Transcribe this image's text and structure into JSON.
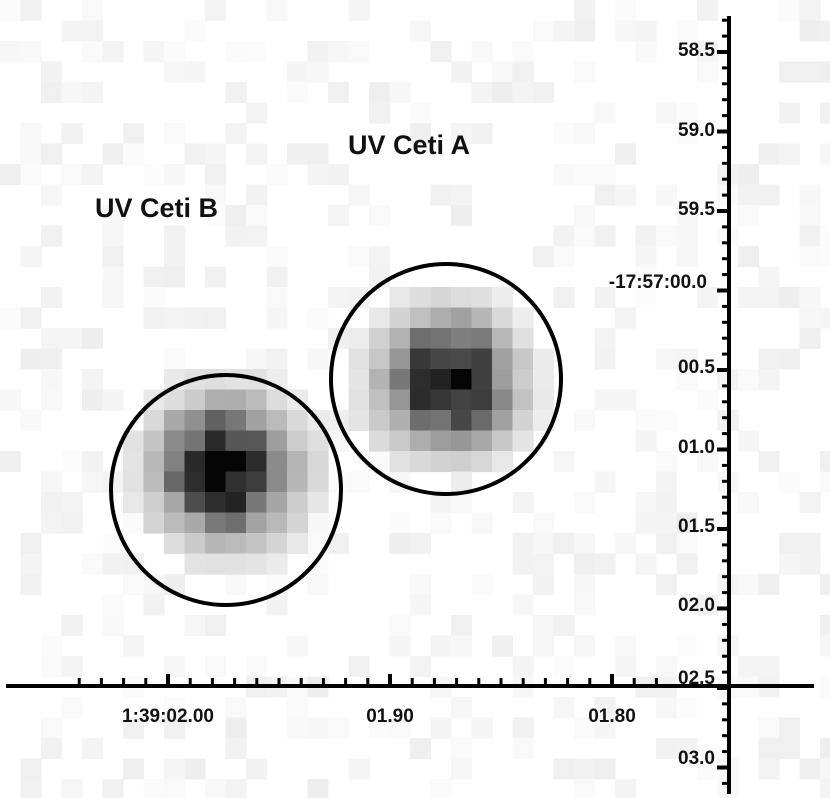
{
  "sources": [
    {
      "key": "a",
      "label": "UV Ceti A"
    },
    {
      "key": "b",
      "label": "UV Ceti B"
    }
  ],
  "ra_axis": {
    "tick_labels": [
      "1:39:02.00",
      "01.90",
      "01.80"
    ]
  },
  "dec_axis": {
    "tick_labels": [
      "58.5",
      "59.0",
      "59.5",
      "-17:57:00.0",
      "00.5",
      "01.0",
      "01.5",
      "02.0",
      "02.5",
      "03.0"
    ]
  },
  "colors": {
    "background": "#ffffff",
    "ink": "#000000",
    "colormap": "inverted grayscale"
  }
}
